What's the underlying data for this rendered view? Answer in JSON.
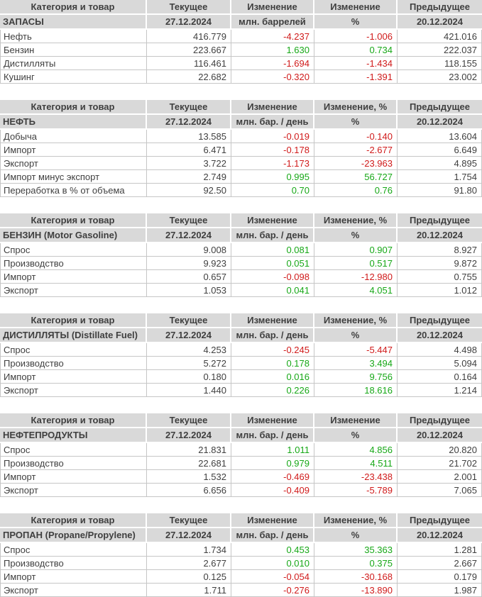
{
  "colors": {
    "header_bg": "#d9d9d9",
    "text": "#3f3f3f",
    "grid": "#c6c6c6",
    "positive": "#17a817",
    "negative": "#d01a1a"
  },
  "tables": [
    {
      "header": {
        "category": "Категория и товар",
        "current": "Текущее",
        "change": "Изменение",
        "change_pct": "Изменение",
        "previous": "Предыдущее"
      },
      "subheader": {
        "category": "ЗАПАСЫ",
        "current_date": "27.12.2024",
        "change_unit": "млн. баррелей",
        "pct_unit": "%",
        "previous_date": "20.12.2024"
      },
      "rows": [
        {
          "label": "Нефть",
          "current": "416.779",
          "change": "-4.237",
          "change_pct": "-1.006",
          "previous": "421.016"
        },
        {
          "label": "Бензин",
          "current": "223.667",
          "change": "1.630",
          "change_pct": "0.734",
          "previous": "222.037"
        },
        {
          "label": "Дистилляты",
          "current": "116.461",
          "change": "-1.694",
          "change_pct": "-1.434",
          "previous": "118.155"
        },
        {
          "label": "Кушинг",
          "current": "22.682",
          "change": "-0.320",
          "change_pct": "-1.391",
          "previous": "23.002"
        }
      ]
    },
    {
      "header": {
        "category": "Категория и товар",
        "current": "Текущее",
        "change": "Изменение",
        "change_pct": "Изменение, %",
        "previous": "Предыдущее"
      },
      "subheader": {
        "category": "НЕФТЬ",
        "current_date": "27.12.2024",
        "change_unit": "млн. бар. / день",
        "pct_unit": "%",
        "previous_date": "20.12.2024"
      },
      "rows": [
        {
          "label": "Добыча",
          "current": "13.585",
          "change": "-0.019",
          "change_pct": "-0.140",
          "previous": "13.604"
        },
        {
          "label": "Импорт",
          "current": "6.471",
          "change": "-0.178",
          "change_pct": "-2.677",
          "previous": "6.649"
        },
        {
          "label": "Экспорт",
          "current": "3.722",
          "change": "-1.173",
          "change_pct": "-23.963",
          "previous": "4.895"
        },
        {
          "label": "Импорт минус экспорт",
          "current": "2.749",
          "change": "0.995",
          "change_pct": "56.727",
          "previous": "1.754"
        },
        {
          "label": "Переработка в % от объема",
          "current": "92.50",
          "change": "0.70",
          "change_pct": "0.76",
          "previous": "91.80"
        }
      ]
    },
    {
      "header": {
        "category": "Категория и товар",
        "current": "Текущее",
        "change": "Изменение",
        "change_pct": "Изменение, %",
        "previous": "Предыдущее"
      },
      "subheader": {
        "category": "БЕНЗИН (Motor Gasoline)",
        "current_date": "27.12.2024",
        "change_unit": "млн. бар. / день",
        "pct_unit": "%",
        "previous_date": "20.12.2024"
      },
      "rows": [
        {
          "label": "Спрос",
          "current": "9.008",
          "change": "0.081",
          "change_pct": "0.907",
          "previous": "8.927"
        },
        {
          "label": "Производство",
          "current": "9.923",
          "change": "0.051",
          "change_pct": "0.517",
          "previous": "9.872"
        },
        {
          "label": "Импорт",
          "current": "0.657",
          "change": "-0.098",
          "change_pct": "-12.980",
          "previous": "0.755"
        },
        {
          "label": "Экспорт",
          "current": "1.053",
          "change": "0.041",
          "change_pct": "4.051",
          "previous": "1.012"
        }
      ]
    },
    {
      "header": {
        "category": "Категория и товар",
        "current": "Текущее",
        "change": "Изменение",
        "change_pct": "Изменение, %",
        "previous": "Предыдущее"
      },
      "subheader": {
        "category": "ДИСТИЛЛЯТЫ (Distillate Fuel)",
        "current_date": "27.12.2024",
        "change_unit": "млн. бар. / день",
        "pct_unit": "%",
        "previous_date": "20.12.2024"
      },
      "rows": [
        {
          "label": "Спрос",
          "current": "4.253",
          "change": "-0.245",
          "change_pct": "-5.447",
          "previous": "4.498"
        },
        {
          "label": "Производство",
          "current": "5.272",
          "change": "0.178",
          "change_pct": "3.494",
          "previous": "5.094"
        },
        {
          "label": "Импорт",
          "current": "0.180",
          "change": "0.016",
          "change_pct": "9.756",
          "previous": "0.164"
        },
        {
          "label": "Экспорт",
          "current": "1.440",
          "change": "0.226",
          "change_pct": "18.616",
          "previous": "1.214"
        }
      ]
    },
    {
      "header": {
        "category": "Категория и товар",
        "current": "Текущее",
        "change": "Изменение",
        "change_pct": "Изменение",
        "previous": "Предыдущее"
      },
      "subheader": {
        "category": "НЕФТЕПРОДУКТЫ",
        "current_date": "27.12.2024",
        "change_unit": "млн. бар. / день",
        "pct_unit": "%",
        "previous_date": "20.12.2024"
      },
      "rows": [
        {
          "label": "Спрос",
          "current": "21.831",
          "change": "1.011",
          "change_pct": "4.856",
          "previous": "20.820"
        },
        {
          "label": "Производство",
          "current": "22.681",
          "change": "0.979",
          "change_pct": "4.511",
          "previous": "21.702"
        },
        {
          "label": "Импорт",
          "current": "1.532",
          "change": "-0.469",
          "change_pct": "-23.438",
          "previous": "2.001"
        },
        {
          "label": "Экспорт",
          "current": "6.656",
          "change": "-0.409",
          "change_pct": "-5.789",
          "previous": "7.065"
        }
      ]
    },
    {
      "header": {
        "category": "Категория и товар",
        "current": "Текущее",
        "change": "Изменение",
        "change_pct": "Изменение, %",
        "previous": "Предыдущее"
      },
      "subheader": {
        "category": "ПРОПАН (Propane/Propylene)",
        "current_date": "27.12.2024",
        "change_unit": "млн. бар. / день",
        "pct_unit": "%",
        "previous_date": "20.12.2024"
      },
      "rows": [
        {
          "label": "Спрос",
          "current": "1.734",
          "change": "0.453",
          "change_pct": "35.363",
          "previous": "1.281"
        },
        {
          "label": "Производство",
          "current": "2.677",
          "change": "0.010",
          "change_pct": "0.375",
          "previous": "2.667"
        },
        {
          "label": "Импорт",
          "current": "0.125",
          "change": "-0.054",
          "change_pct": "-30.168",
          "previous": "0.179"
        },
        {
          "label": "Экспорт",
          "current": "1.711",
          "change": "-0.276",
          "change_pct": "-13.890",
          "previous": "1.987"
        }
      ]
    }
  ]
}
